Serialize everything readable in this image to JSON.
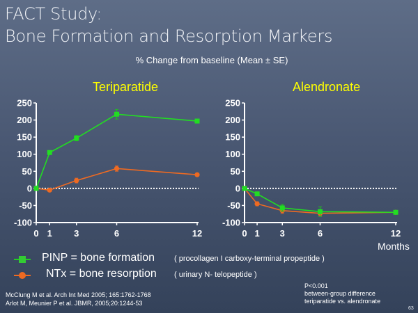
{
  "slide": {
    "title_line1": "FACT Study:",
    "title_line2": "Bone Formation and Resorption Markers",
    "subtitle": "% Change from baseline (Mean ± SE)",
    "x_unit_label": "Months",
    "slide_number": "63"
  },
  "legend": [
    {
      "label": "PINP = bone formation",
      "note": "( procollagen I carboxy-terminal propeptide )",
      "marker": "square",
      "color": "#22dd22"
    },
    {
      "label": "NTx = bone resorption",
      "note": "( urinary N- telopeptide )",
      "marker": "circle",
      "color": "#ee6a22"
    }
  ],
  "references": [
    "McClung M et al. Arch Int Med 2005; 165:1762-1768",
    "Arlot M, Meunier P et al. JBMR, 2005;20:1244-53"
  ],
  "p_note": [
    "P<0.001",
    "between-group difference",
    "teriparatide vs. alendronate"
  ],
  "colors": {
    "pinp": "#22dd22",
    "ntx": "#ee6a22",
    "title_yellow": "#ffff00",
    "axis": "#ffffff"
  },
  "chart_data": [
    {
      "type": "line",
      "title": "Teriparatide",
      "xlabel": "Months",
      "ylabel": "% Change from baseline",
      "x": [
        0,
        1,
        3,
        6,
        12
      ],
      "x_ticks": [
        "0",
        "1",
        "3",
        "6",
        "12"
      ],
      "y_ticks": [
        "250",
        "200",
        "150",
        "100",
        "50",
        "0",
        "-50",
        "-100"
      ],
      "ylim": [
        -100,
        250
      ],
      "baseline": 0,
      "series": [
        {
          "name": "PINP",
          "values": [
            0,
            105,
            147,
            217,
            197
          ],
          "se": [
            0,
            5,
            8,
            14,
            4
          ],
          "marker": "square"
        },
        {
          "name": "NTx",
          "values": [
            0,
            -5,
            23,
            58,
            40
          ],
          "se": [
            0,
            3,
            7,
            8,
            3
          ],
          "marker": "circle"
        }
      ]
    },
    {
      "type": "line",
      "title": "Alendronate",
      "xlabel": "Months",
      "ylabel": "% Change from baseline",
      "x": [
        0,
        1,
        3,
        6,
        12
      ],
      "x_ticks": [
        "0",
        "1",
        "3",
        "6",
        "12"
      ],
      "y_ticks": [
        "250",
        "200",
        "150",
        "100",
        "50",
        "0",
        "-50",
        "-100"
      ],
      "ylim": [
        -100,
        250
      ],
      "baseline": 0,
      "series": [
        {
          "name": "PINP",
          "values": [
            0,
            -16,
            -57,
            -68,
            -70
          ],
          "se": [
            0,
            3,
            10,
            14,
            4
          ],
          "marker": "square"
        },
        {
          "name": "NTx",
          "values": [
            0,
            -45,
            -65,
            -73,
            -70
          ],
          "se": [
            0,
            6,
            8,
            8,
            4
          ],
          "marker": "circle"
        }
      ]
    }
  ]
}
